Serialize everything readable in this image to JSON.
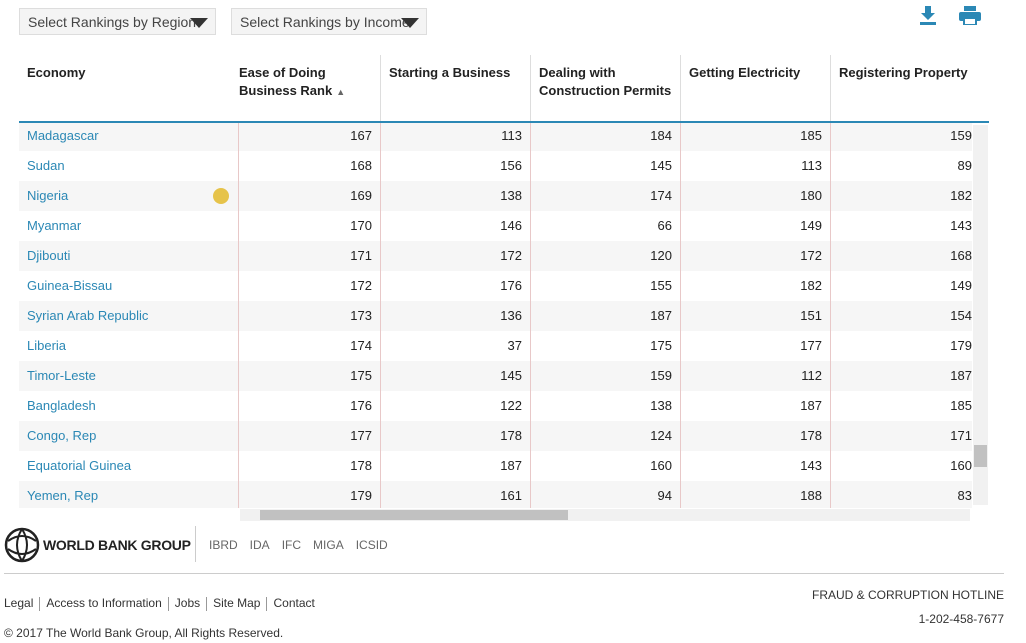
{
  "controls": {
    "region_select": "Select Rankings by Region",
    "income_select": "Select Rankings by Income"
  },
  "table": {
    "columns": [
      "Economy",
      "Ease of Doing Business Rank",
      "Starting a Business",
      "Dealing with Construction Permits",
      "Getting Electricity",
      "Registering Property"
    ],
    "rows": [
      [
        "Madagascar",
        167,
        113,
        184,
        185,
        159
      ],
      [
        "Sudan",
        168,
        156,
        145,
        113,
        89
      ],
      [
        "Nigeria",
        169,
        138,
        174,
        180,
        182
      ],
      [
        "Myanmar",
        170,
        146,
        66,
        149,
        143
      ],
      [
        "Djibouti",
        171,
        172,
        120,
        172,
        168
      ],
      [
        "Guinea-Bissau",
        172,
        176,
        155,
        182,
        149
      ],
      [
        "Syrian Arab Republic",
        173,
        136,
        187,
        151,
        154
      ],
      [
        "Liberia",
        174,
        37,
        175,
        177,
        179
      ],
      [
        "Timor-Leste",
        175,
        145,
        159,
        112,
        187
      ],
      [
        "Bangladesh",
        176,
        122,
        138,
        187,
        185
      ],
      [
        "Congo, Rep",
        177,
        178,
        124,
        178,
        171
      ],
      [
        "Equatorial Guinea",
        178,
        187,
        160,
        143,
        160
      ],
      [
        "Yemen, Rep",
        179,
        161,
        94,
        188,
        83
      ]
    ]
  },
  "footer": {
    "brand": "WORLD BANK GROUP",
    "institutions": [
      "IBRD",
      "IDA",
      "IFC",
      "MIGA",
      "ICSID"
    ],
    "links": [
      "Legal",
      "Access to Information",
      "Jobs",
      "Site Map",
      "Contact"
    ],
    "hotline_title": "FRAUD & CORRUPTION HOTLINE",
    "hotline_number": "1-202-458-7677",
    "copyright": "© 2017 The World Bank Group, All Rights Reserved."
  }
}
